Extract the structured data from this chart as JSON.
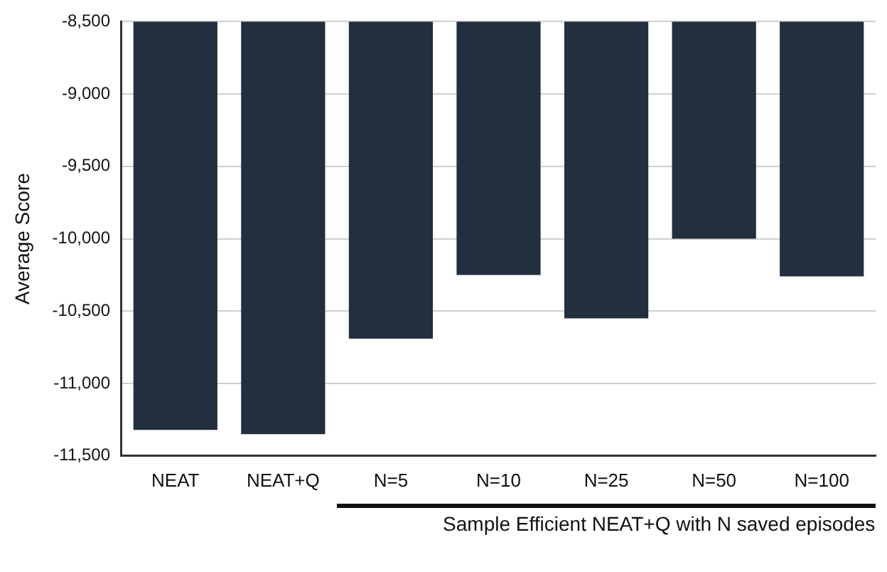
{
  "chart_data": {
    "type": "bar",
    "ylabel": "Average Score",
    "categories": [
      "NEAT",
      "NEAT+Q",
      "N=5",
      "N=10",
      "N=25",
      "N=50",
      "N=100"
    ],
    "values": [
      -11320,
      -11350,
      -10690,
      -10250,
      -10550,
      -10000,
      -10260
    ],
    "color": "#222f3e",
    "ylim": [
      -11500,
      -8500
    ],
    "yticks": [
      {
        "value": -11500,
        "label": "-11,500"
      },
      {
        "value": -11000,
        "label": "-11,000"
      },
      {
        "value": -10500,
        "label": "-10,500"
      },
      {
        "value": -10000,
        "label": "-10,000"
      },
      {
        "value": -9500,
        "label": "-9,500"
      },
      {
        "value": -9000,
        "label": "-9,000"
      },
      {
        "value": -8500,
        "label": "-8,500"
      }
    ],
    "grid": "y",
    "legend": false,
    "annotations": [
      "Sample Efficient NEAT+Q with N saved episodes"
    ]
  }
}
